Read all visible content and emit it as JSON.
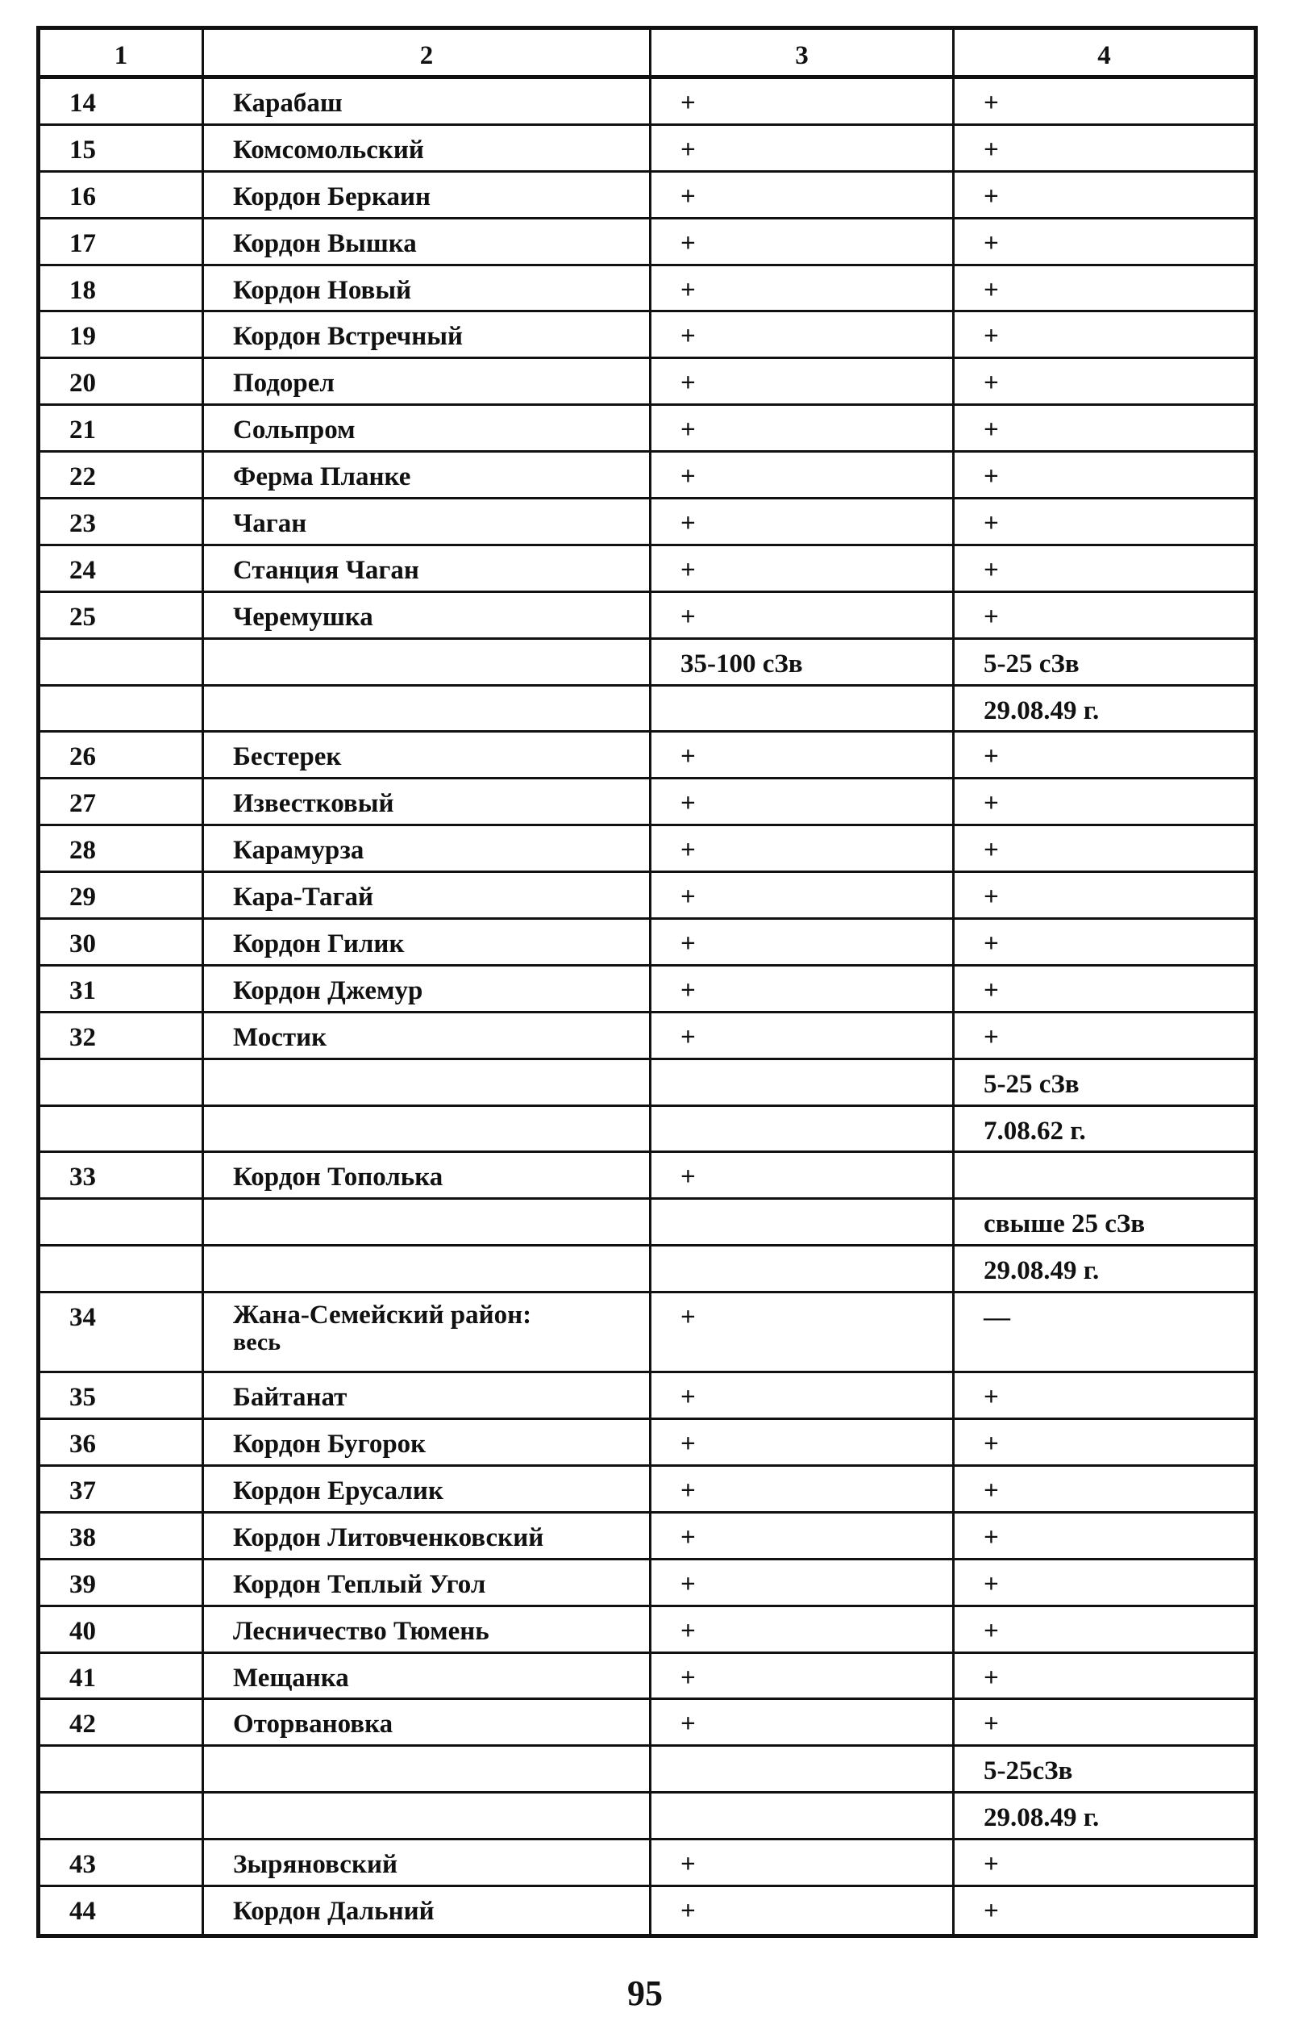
{
  "table": {
    "headers": [
      "1",
      "2",
      "3",
      "4"
    ],
    "rows": [
      [
        "14",
        "Карабаш",
        "+",
        "+"
      ],
      [
        "15",
        "Комсомольский",
        "+",
        "+"
      ],
      [
        "16",
        "Кордон Беркаин",
        "+",
        "+"
      ],
      [
        "17",
        "Кордон Вышка",
        "+",
        "+"
      ],
      [
        "18",
        "Кордон Новый",
        "+",
        "+"
      ],
      [
        "19",
        "Кордон Встречный",
        "+",
        "+"
      ],
      [
        "20",
        "Подорел",
        "+",
        "+"
      ],
      [
        "21",
        "Сольпром",
        "+",
        "+"
      ],
      [
        "22",
        "Ферма Планке",
        "+",
        "+"
      ],
      [
        "23",
        "Чаган",
        "+",
        "+"
      ],
      [
        "24",
        "Станция Чаган",
        "+",
        "+"
      ],
      [
        "25",
        "Черемушка",
        "+",
        "+"
      ],
      [
        "",
        "",
        "35-100 сЗв",
        "5-25 сЗв"
      ],
      [
        "",
        "",
        "",
        "29.08.49 г."
      ],
      [
        "26",
        "Бестерек",
        "+",
        "+"
      ],
      [
        "27",
        "Известковый",
        "+",
        "+"
      ],
      [
        "28",
        "Карамурза",
        "+",
        "+"
      ],
      [
        "29",
        "Кара-Тагай",
        "+",
        "+"
      ],
      [
        "30",
        "Кордон Гилик",
        "+",
        "+"
      ],
      [
        "31",
        "Кордон Джемур",
        "+",
        "+"
      ],
      [
        "32",
        "Мостик",
        "+",
        "+"
      ],
      [
        "",
        "",
        "",
        "5-25 сЗв"
      ],
      [
        "",
        "",
        "",
        "7.08.62 г."
      ],
      [
        "33",
        "Кордон Тополька",
        "+",
        ""
      ],
      [
        "",
        "",
        "",
        "свыше 25 сЗв"
      ],
      [
        "",
        "",
        "",
        "29.08.49 г."
      ],
      [
        "34",
        "Жана-Семейский район:",
        "+",
        "—",
        "весь"
      ],
      [
        "35",
        "Байтанат",
        "+",
        "+"
      ],
      [
        "36",
        "Кордон Бугорок",
        "+",
        "+"
      ],
      [
        "37",
        "Кордон Ерусалик",
        "+",
        "+"
      ],
      [
        "38",
        "Кордон Литовченковский",
        "+",
        "+"
      ],
      [
        "39",
        "Кордон Теплый Угол",
        "+",
        "+"
      ],
      [
        "40",
        "Лесничество Тюмень",
        "+",
        "+"
      ],
      [
        "41",
        "Мещанка",
        "+",
        "+"
      ],
      [
        "42",
        "Оторвановка",
        "+",
        "+"
      ],
      [
        "",
        "",
        "",
        "5-25сЗв"
      ],
      [
        "",
        "",
        "",
        "29.08.49 г."
      ],
      [
        "43",
        "Зыряновский",
        "+",
        "+"
      ],
      [
        "44",
        "Кордон Дальний",
        "+",
        "+"
      ]
    ]
  },
  "page_number": "95"
}
